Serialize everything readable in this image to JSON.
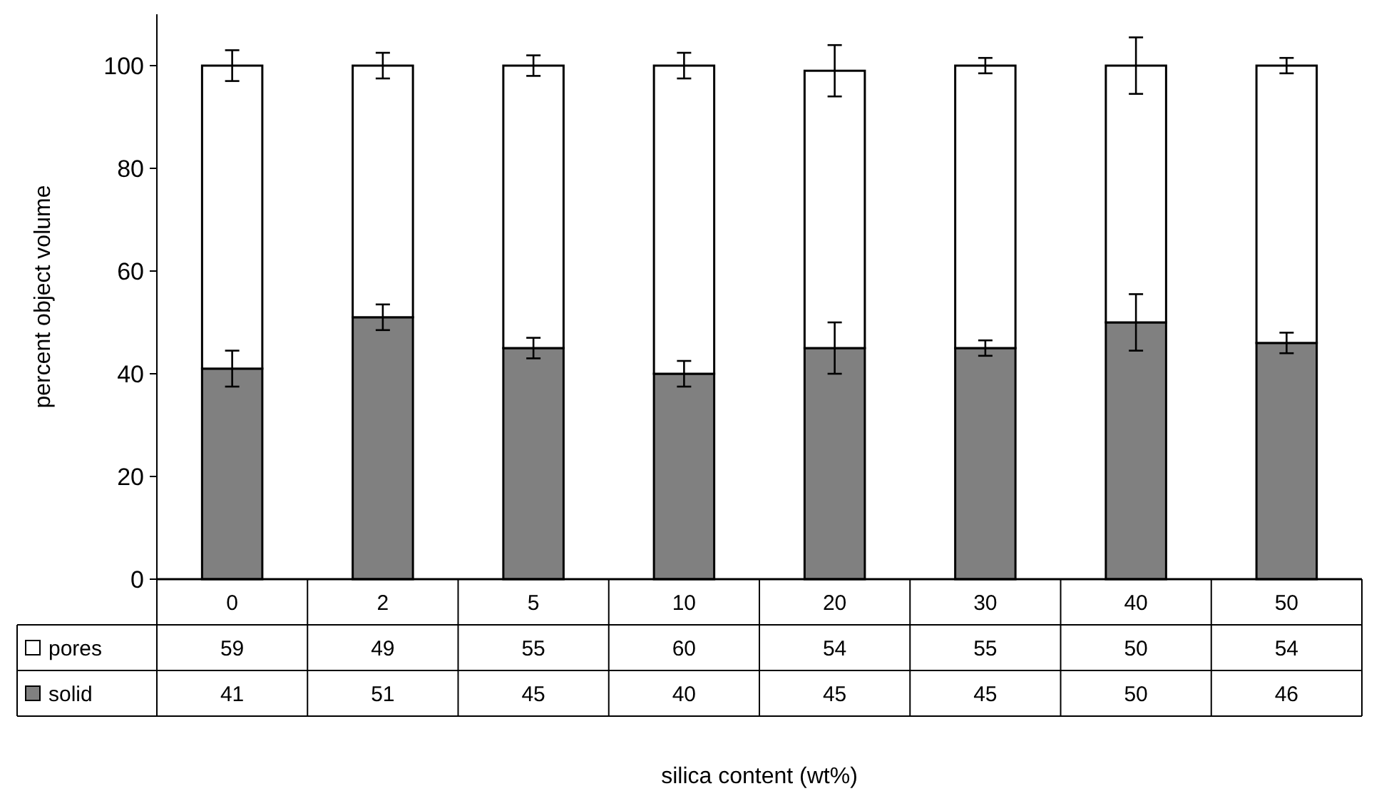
{
  "chart_data": {
    "type": "bar",
    "stacked": true,
    "annotations": [
      "silica content (wt%)"
    ],
    "ylabel": "percent object volume",
    "categories": [
      "0",
      "2",
      "5",
      "10",
      "20",
      "30",
      "40",
      "50"
    ],
    "series": [
      {
        "name": "solid",
        "color": "#808080",
        "values": [
          41,
          51,
          45,
          40,
          45,
          45,
          50,
          46
        ],
        "errors": [
          3.5,
          2.5,
          2,
          2.5,
          5,
          1.5,
          5.5,
          2
        ]
      },
      {
        "name": "pores",
        "color": "#ffffff",
        "values": [
          59,
          49,
          55,
          60,
          54,
          55,
          50,
          54
        ],
        "errors": [
          3,
          2.5,
          2,
          2.5,
          5,
          1.5,
          5.5,
          1.5
        ]
      }
    ],
    "ylim": [
      0,
      110
    ],
    "yticks": [
      0,
      20,
      40,
      60,
      80,
      100
    ],
    "grid": false,
    "legend": "bottom",
    "data_labels": true
  }
}
